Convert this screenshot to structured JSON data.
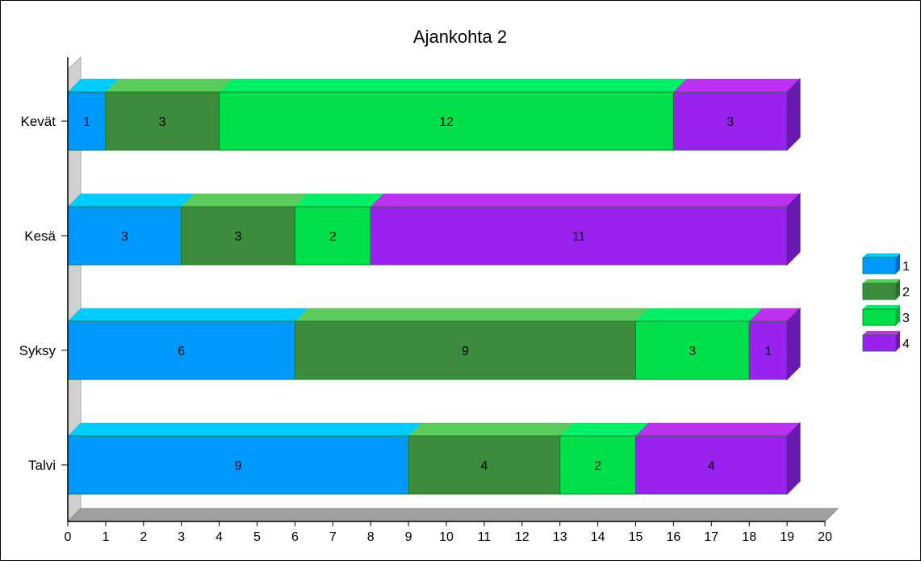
{
  "chart_data": {
    "type": "bar",
    "orientation": "horizontal",
    "stacked": true,
    "style": "3d",
    "title": "Ajankohta 2",
    "xlabel": "",
    "ylabel": "",
    "categories": [
      "Kevät",
      "Kesä",
      "Syksy",
      "Talvi"
    ],
    "series": [
      {
        "name": "1",
        "values": [
          1,
          3,
          6,
          9
        ]
      },
      {
        "name": "2",
        "values": [
          3,
          3,
          9,
          4
        ]
      },
      {
        "name": "3",
        "values": [
          12,
          2,
          3,
          2
        ]
      },
      {
        "name": "4",
        "values": [
          3,
          11,
          1,
          4
        ]
      }
    ],
    "xlim": [
      0,
      20
    ],
    "xticks": [
      "0",
      "1",
      "2",
      "3",
      "4",
      "5",
      "6",
      "7",
      "8",
      "9",
      "10",
      "11",
      "12",
      "13",
      "14",
      "15",
      "16",
      "17",
      "18",
      "19",
      "20"
    ],
    "grid": false,
    "legend": "right",
    "colors": {
      "series_front": [
        "#0099ff",
        "#3d8c3d",
        "#00e04a",
        "#9922ee"
      ],
      "series_top": [
        "#00ccff",
        "#5ccd5c",
        "#00f06a",
        "#bb33ee"
      ],
      "series_side": [
        "#0066cc",
        "#2e6b2e",
        "#00b03a",
        "#6a1ab0"
      ],
      "outline": "#1a7a2a",
      "floor": "#a0a0a0"
    }
  }
}
